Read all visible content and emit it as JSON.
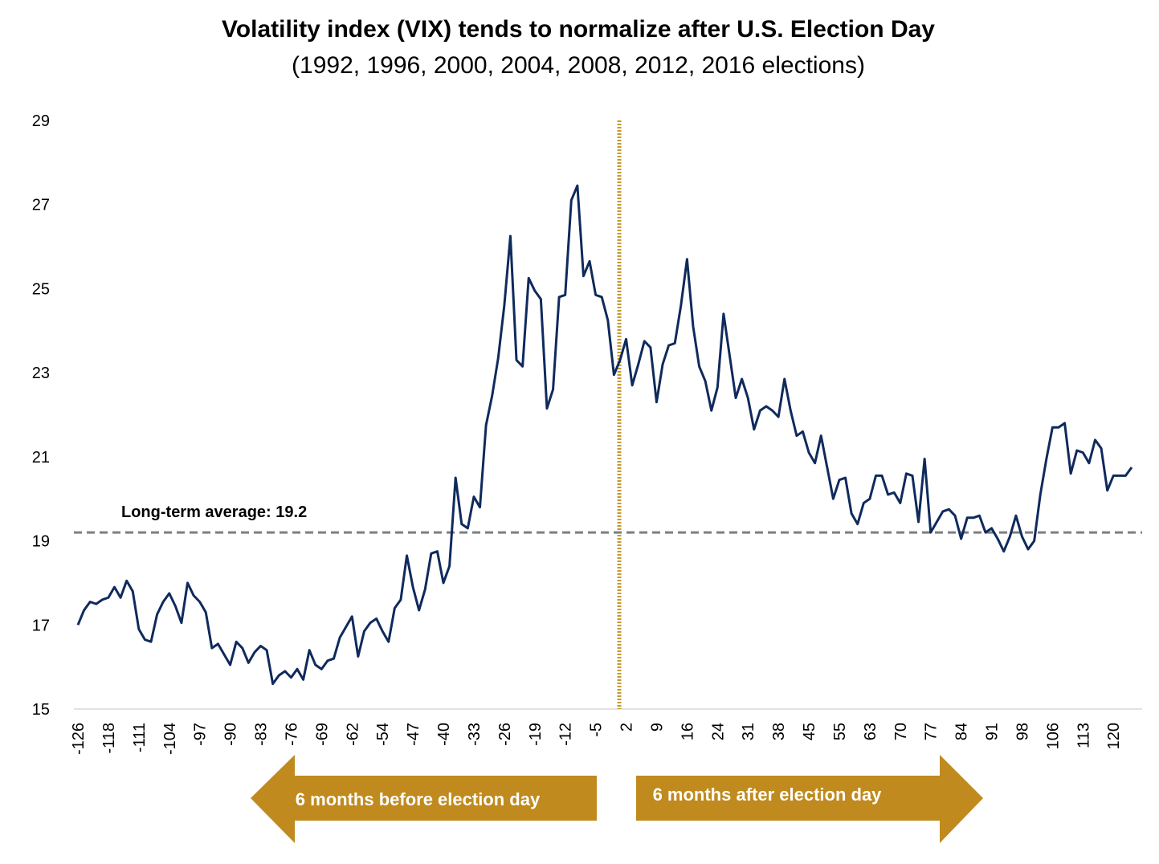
{
  "chart_data": {
    "type": "line",
    "title": "Volatility index (VIX) tends to normalize after U.S. Election Day",
    "subtitle": "(1992, 1996, 2000, 2004, 2008, 2012, 2016 elections)",
    "categories": [
      "-126",
      null,
      null,
      null,
      null,
      "-118",
      null,
      null,
      null,
      null,
      "-111",
      null,
      null,
      null,
      null,
      "-104",
      null,
      null,
      null,
      null,
      "-97",
      null,
      null,
      null,
      null,
      "-90",
      null,
      null,
      null,
      null,
      "-83",
      null,
      null,
      null,
      null,
      "-76",
      null,
      null,
      null,
      null,
      "-69",
      null,
      null,
      null,
      null,
      "-62",
      null,
      null,
      null,
      null,
      "-54",
      null,
      null,
      null,
      null,
      "-47",
      null,
      null,
      null,
      null,
      "-40",
      null,
      null,
      null,
      null,
      "-33",
      null,
      null,
      null,
      null,
      "-26",
      null,
      null,
      null,
      null,
      "-19",
      null,
      null,
      null,
      null,
      "-12",
      null,
      null,
      null,
      null,
      "-5",
      null,
      null,
      null,
      null,
      "2",
      null,
      null,
      null,
      null,
      "9",
      null,
      null,
      null,
      null,
      "16",
      null,
      null,
      null,
      null,
      "24",
      null,
      null,
      null,
      null,
      "31",
      null,
      null,
      null,
      null,
      "38",
      null,
      null,
      null,
      null,
      "45",
      null,
      null,
      null,
      null,
      "55",
      null,
      null,
      null,
      null,
      "63",
      null,
      null,
      null,
      null,
      "70",
      null,
      null,
      null,
      null,
      "77",
      null,
      null,
      null,
      null,
      "84",
      null,
      null,
      null,
      null,
      "91",
      null,
      null,
      null,
      null,
      "98",
      null,
      null,
      null,
      null,
      "106",
      null,
      null,
      null,
      null,
      "113",
      null,
      null,
      null,
      null,
      "120",
      null,
      null,
      null
    ],
    "values": [
      17.0,
      17.35,
      17.55,
      17.5,
      17.6,
      17.65,
      17.9,
      17.65,
      18.05,
      17.8,
      16.9,
      16.65,
      16.6,
      17.25,
      17.55,
      17.75,
      17.45,
      17.05,
      18.0,
      17.7,
      17.55,
      17.3,
      16.45,
      16.55,
      16.3,
      16.05,
      16.6,
      16.45,
      16.1,
      16.35,
      16.5,
      16.4,
      15.6,
      15.8,
      15.9,
      15.75,
      15.95,
      15.7,
      16.4,
      16.05,
      15.95,
      16.15,
      16.2,
      16.7,
      16.95,
      17.2,
      16.25,
      16.85,
      17.05,
      17.15,
      16.85,
      16.6,
      17.4,
      17.6,
      18.65,
      17.9,
      17.35,
      17.85,
      18.7,
      18.75,
      18.0,
      18.4,
      20.5,
      19.4,
      19.3,
      20.05,
      19.8,
      21.75,
      22.45,
      23.35,
      24.6,
      26.25,
      23.3,
      23.15,
      25.25,
      24.95,
      24.75,
      22.15,
      22.6,
      24.8,
      24.85,
      27.1,
      27.45,
      25.3,
      25.65,
      24.85,
      24.8,
      24.25,
      22.95,
      23.3,
      23.8,
      22.7,
      23.2,
      23.75,
      23.6,
      22.3,
      23.2,
      23.65,
      23.7,
      24.6,
      25.7,
      24.1,
      23.15,
      22.8,
      22.1,
      22.65,
      24.4,
      23.4,
      22.4,
      22.85,
      22.4,
      21.65,
      22.1,
      22.2,
      22.1,
      21.95,
      22.85,
      22.1,
      21.5,
      21.6,
      21.1,
      20.85,
      21.5,
      20.75,
      20.0,
      20.45,
      20.5,
      19.65,
      19.4,
      19.9,
      20.0,
      20.55,
      20.55,
      20.1,
      20.15,
      19.9,
      20.6,
      20.55,
      19.45,
      20.95,
      19.2,
      19.45,
      19.7,
      19.75,
      19.6,
      19.05,
      19.55,
      19.55,
      19.6,
      19.2,
      19.3,
      19.05,
      18.75,
      19.1,
      19.6,
      19.1,
      18.8,
      19.0,
      20.1,
      20.95,
      21.7,
      21.7,
      21.8,
      20.6,
      21.15,
      21.1,
      20.85,
      21.4,
      21.2,
      20.2,
      20.55,
      20.55,
      20.55,
      20.75
    ],
    "color": "#0f2a5c",
    "ylim": [
      15,
      29
    ],
    "yticks": [
      15,
      17,
      19,
      21,
      23,
      25,
      27,
      29
    ],
    "average": {
      "label": "Long-term average: 19.2",
      "value": 19.2
    },
    "arrows": [
      "6 months before election day",
      "6 months after election day"
    ]
  }
}
